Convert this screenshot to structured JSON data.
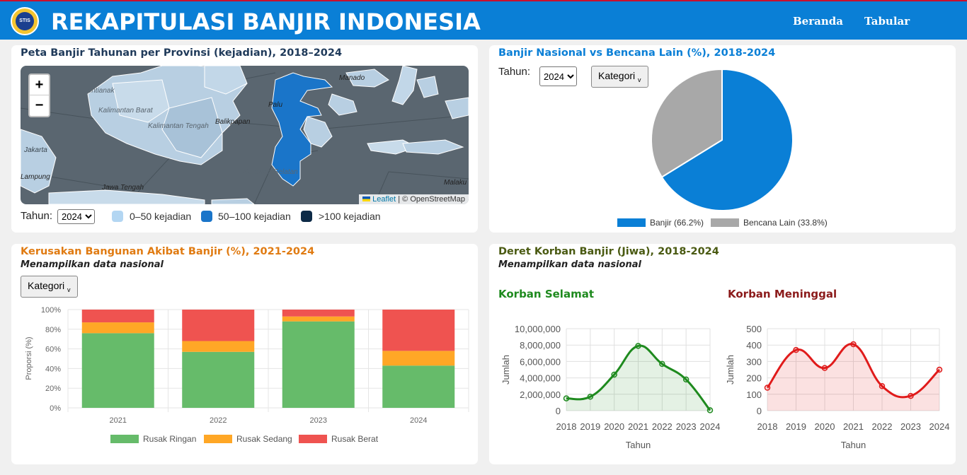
{
  "header": {
    "title": "REKAPITULASI BANJIR INDONESIA",
    "logo_text": "STIS",
    "nav": [
      "Beranda",
      "Tabular"
    ]
  },
  "map_card": {
    "title": "Peta Banjir Tahunan per Provinsi (kejadian), 2018–2024",
    "zoom_in": "+",
    "zoom_out": "−",
    "attrib_link": "Leaflet",
    "attrib_text": "| © OpenStreetMap",
    "year_label": "Tahun:",
    "year_value": "2024",
    "legend": [
      {
        "label": "0–50 kejadian",
        "color": "#b3d6f2"
      },
      {
        "label": "50–100 kejadian",
        "color": "#1a75c9"
      },
      {
        "label": ">100 kejadian",
        "color": "#0d2a47"
      }
    ],
    "place_labels": [
      "Pontianak",
      "Kalimantan Barat",
      "Kalimantan Tengah",
      "Balikpapan",
      "Palu",
      "Sulawesi Selatan",
      "Jawa Tengah",
      "Jakarta",
      "Lampung",
      "Malaku",
      "Manado"
    ]
  },
  "pie_card": {
    "title": "Banjir Nasional vs Bencana Lain (%), 2018-2024",
    "year_label": "Tahun:",
    "year_value": "2024",
    "category_button": "Kategori",
    "category_caret": "v"
  },
  "bar_card": {
    "title": "Kerusakan Bangunan Akibat Banjir (%), 2021-2024",
    "subtitle": "Menampilkan data nasional",
    "category_button": "Kategori",
    "category_caret": "v"
  },
  "line_card": {
    "title": "Deret Korban Banjir (Jiwa), 2018-2024",
    "subtitle": "Menampilkan data nasional",
    "left_title": "Korban Selamat",
    "right_title": "Korban Meninggal"
  },
  "colors": {
    "header": "#0a7fd6",
    "banjir": "#0a7fd6",
    "bencana_lain": "#a8a8a8",
    "rusak_ringan": "#66bb6a",
    "rusak_sedang": "#ffa726",
    "rusak_berat": "#ef5350",
    "selamat": "#1e8a1e",
    "meninggal": "#e01b1b"
  },
  "chart_data": [
    {
      "type": "pie",
      "title": "Banjir Nasional vs Bencana Lain (%), 2018-2024",
      "categories": [
        "Banjir (66.2%)",
        "Bencana Lain (33.8%)"
      ],
      "values": [
        66.2,
        33.8
      ],
      "legend": "bottom"
    },
    {
      "type": "bar",
      "title": "Kerusakan Bangunan Akibat Banjir (%), 2021-2024",
      "stacked": true,
      "categories": [
        "2021",
        "2022",
        "2023",
        "2024"
      ],
      "series": [
        {
          "name": "Rusak Ringan",
          "values": [
            76,
            57,
            88,
            43
          ]
        },
        {
          "name": "Rusak Sedang",
          "values": [
            11,
            11,
            5,
            15
          ]
        },
        {
          "name": "Rusak Berat",
          "values": [
            13,
            32,
            7,
            42
          ]
        }
      ],
      "ylabel": "Proporsi (%)",
      "yticks": [
        "0%",
        "20%",
        "40%",
        "60%",
        "80%",
        "100%"
      ],
      "ylim": [
        0,
        100
      ],
      "legend": "bottom"
    },
    {
      "type": "area",
      "title": "Korban Selamat",
      "x": [
        "2018",
        "2019",
        "2020",
        "2021",
        "2022",
        "2023",
        "2024"
      ],
      "values": [
        1500000,
        1700000,
        4400000,
        7900000,
        5700000,
        3800000,
        50000
      ],
      "xlabel": "Tahun",
      "ylabel": "Jumlah",
      "yticks": [
        "0",
        "2,000,000",
        "4,000,000",
        "6,000,000",
        "8,000,000",
        "10,000,000"
      ],
      "ylim": [
        0,
        10000000
      ]
    },
    {
      "type": "area",
      "title": "Korban Meninggal",
      "x": [
        "2018",
        "2019",
        "2020",
        "2021",
        "2022",
        "2023",
        "2024"
      ],
      "values": [
        140,
        370,
        260,
        405,
        150,
        90,
        250
      ],
      "xlabel": "Tahun",
      "ylabel": "Jumlah",
      "yticks": [
        "0",
        "100",
        "200",
        "300",
        "400",
        "500"
      ],
      "ylim": [
        0,
        500
      ]
    }
  ]
}
